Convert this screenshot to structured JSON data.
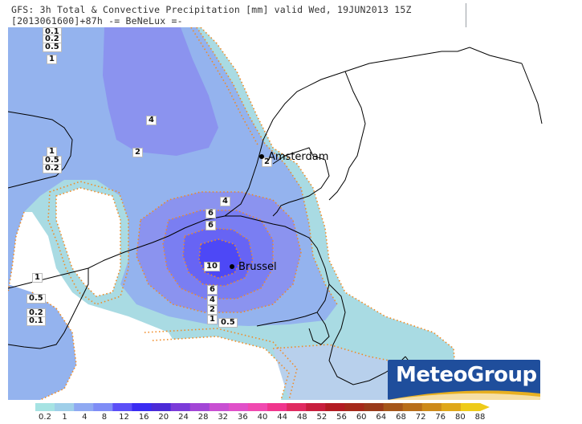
{
  "header": {
    "line1": "GFS: 3h Total & Convective Precipitation [mm] valid Wed, 19JUN2013 15Z",
    "line2": "[2013061600]+87h  -= BeNeLux =-"
  },
  "cities": [
    {
      "name": "Amsterdam"
    },
    {
      "name": "Brussel"
    }
  ],
  "contour_labels": [
    "0.1",
    "0.2",
    "0.5",
    "1",
    "4",
    "2",
    "1",
    "0.5",
    "0.2",
    "1",
    "4",
    "6",
    "6",
    "10",
    "6",
    "4",
    "2",
    "1",
    "0.5",
    "2",
    "1",
    "0.5",
    "0.2",
    "0.1"
  ],
  "colorbar": {
    "ticks": [
      "0.2",
      "1",
      "4",
      "8",
      "12",
      "16",
      "20",
      "24",
      "28",
      "32",
      "36",
      "40",
      "44",
      "48",
      "52",
      "56",
      "60",
      "64",
      "68",
      "72",
      "76",
      "80",
      "88"
    ],
    "colors": [
      "#a6e3e3",
      "#9fcfe9",
      "#8fa9f2",
      "#7f8df6",
      "#5b4ff7",
      "#3a2cf2",
      "#4b2bd7",
      "#7b3bd9",
      "#a246d6",
      "#c84fd2",
      "#e050c9",
      "#f049b0",
      "#f0358d",
      "#e02a60",
      "#c81e3d",
      "#b31b22",
      "#a6291a",
      "#9a3a1a",
      "#a5561a",
      "#b86e1a",
      "#cd8a1a",
      "#dfa71a",
      "#eecb1a"
    ]
  },
  "logo": {
    "text": "MeteoGroup",
    "color": "#1f4e9c"
  },
  "colors": {
    "light_precip": "#a5d6e2",
    "mid_precip": "#8fa6f0",
    "heavy_precip": "#6d6cf3",
    "core_precip": "#4d48f5",
    "contour": "#f08a24"
  }
}
